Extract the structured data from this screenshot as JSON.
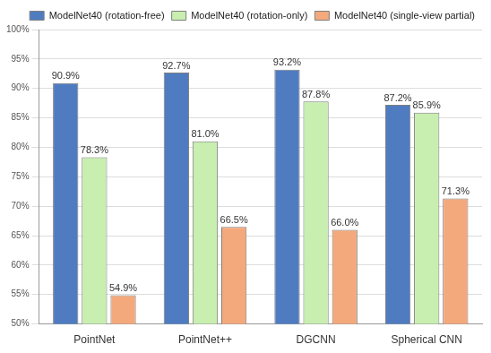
{
  "chart_data": {
    "type": "bar",
    "categories": [
      "PointNet",
      "PointNet++",
      "DGCNN",
      "Spherical CNN"
    ],
    "series": [
      {
        "name": "ModelNet40 (rotation-free)",
        "color": "#4f7cc0",
        "values": [
          90.9,
          92.7,
          93.2,
          87.2
        ],
        "value_labels": [
          "90.9%",
          "92.7%",
          "93.2%",
          "87.2%"
        ]
      },
      {
        "name": "ModelNet40 (rotation-only)",
        "color": "#c8eeb0",
        "values": [
          78.3,
          81.0,
          87.8,
          85.9
        ],
        "value_labels": [
          "78.3%",
          "81.0%",
          "87.8%",
          "85.9%"
        ]
      },
      {
        "name": "ModelNet40 (single-view partial)",
        "color": "#f4a97c",
        "values": [
          54.9,
          66.5,
          66.0,
          71.3
        ],
        "value_labels": [
          "54.9%",
          "66.5%",
          "66.0%",
          "71.3%"
        ]
      }
    ],
    "ylim": [
      50,
      100
    ],
    "yticks": [
      {
        "value": 50,
        "label": "50%"
      },
      {
        "value": 55,
        "label": "55%"
      },
      {
        "value": 60,
        "label": "60%"
      },
      {
        "value": 65,
        "label": "65%"
      },
      {
        "value": 70,
        "label": "70%"
      },
      {
        "value": 75,
        "label": "75%"
      },
      {
        "value": 80,
        "label": "80%"
      },
      {
        "value": 85,
        "label": "85%"
      },
      {
        "value": 90,
        "label": "90%"
      },
      {
        "value": 95,
        "label": "95%"
      },
      {
        "value": 100,
        "label": "100%"
      }
    ],
    "grid": true,
    "legend": "upper right",
    "data_labels": true
  }
}
